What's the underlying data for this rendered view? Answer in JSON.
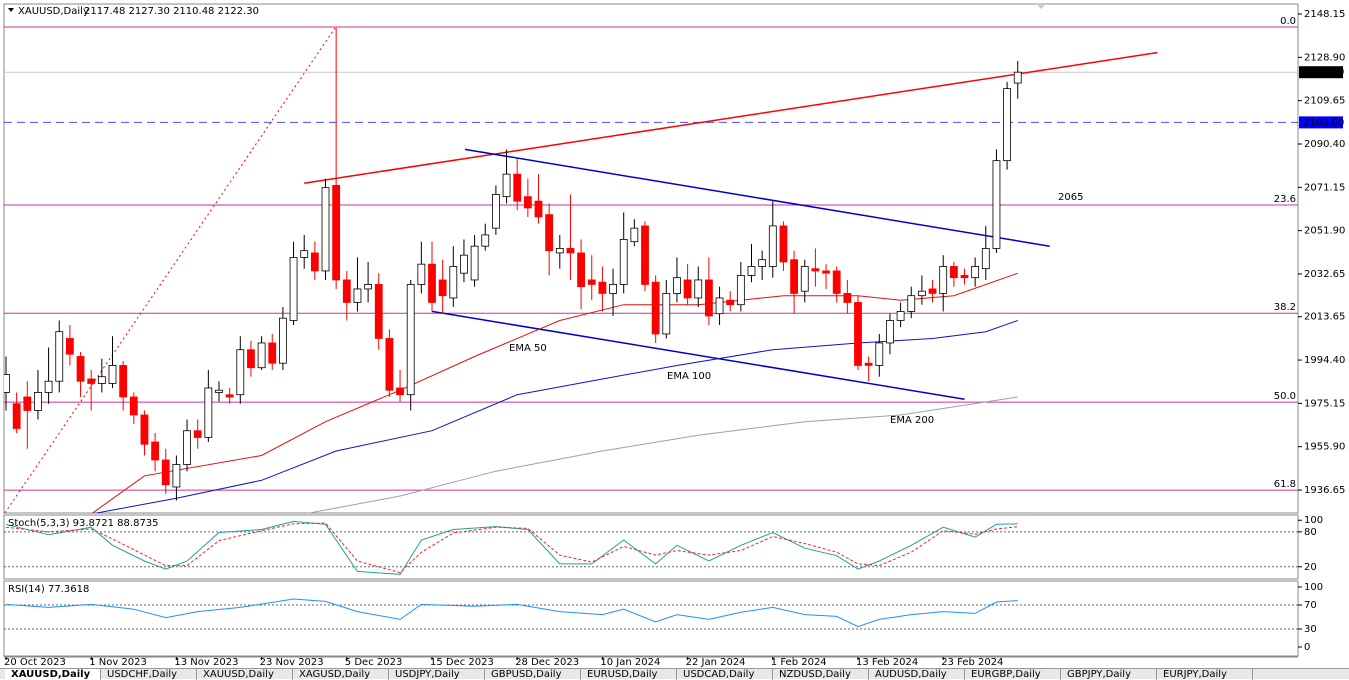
{
  "chart_data": [
    {
      "type": "candlestick",
      "title": "XAUUSD,Daily",
      "subtitle": "2117.48 2127.30 2110.48 2122.30",
      "categories": [
        "20 Oct 2023",
        null,
        null,
        null,
        null,
        null,
        null,
        null,
        "1 Nov 2023",
        null,
        null,
        null,
        null,
        null,
        null,
        null,
        "13 Nov 2023",
        null,
        null,
        null,
        null,
        null,
        null,
        null,
        "23 Nov 2023",
        null,
        null,
        null,
        null,
        null,
        null,
        null,
        "5 Dec 2023",
        null,
        null,
        null,
        null,
        null,
        null,
        null,
        "15 Dec 2023",
        null,
        null,
        null,
        null,
        null,
        null,
        null,
        "28 Dec 2023",
        null,
        null,
        null,
        null,
        null,
        null,
        null,
        "10 Jan 2024",
        null,
        null,
        null,
        null,
        null,
        null,
        null,
        "22 Jan 2024",
        null,
        null,
        null,
        null,
        null,
        null,
        null,
        "1 Feb 2024",
        null,
        null,
        null,
        null,
        null,
        null,
        null,
        "13 Feb 2024",
        null,
        null,
        null,
        null,
        null,
        null,
        null,
        "23 Feb 2024",
        null,
        null,
        null,
        null,
        null,
        null,
        null
      ],
      "open": [
        1980,
        1975,
        1978,
        1972,
        1980,
        1985,
        2004,
        1996,
        1986,
        1984,
        1984,
        1992,
        1978,
        1970,
        1958,
        1950,
        1938,
        1948,
        1963,
        1960,
        1980,
        1979,
        1979,
        1999,
        1991,
        2002,
        1993,
        2012,
        2040,
        2042,
        2034,
        2072,
        2030,
        2020,
        2026,
        2028,
        2004,
        1982,
        1979,
        2028,
        2037,
        2030,
        2022,
        2033,
        2030,
        2045,
        2053,
        2067,
        2077,
        2067,
        2065,
        2059,
        2042,
        2044,
        2042,
        2030,
        2029,
        2024,
        2028,
        2047,
        2054,
        2029,
        2006,
        2024,
        2030,
        2022,
        2030,
        2015,
        2021,
        2019,
        2032,
        2036,
        2036,
        2054,
        2039,
        2025,
        2035,
        2034,
        2034,
        2024,
        2020,
        1993,
        1992,
        2002,
        2012,
        2016,
        2023,
        2026,
        2024,
        2036,
        2032,
        2031,
        2035,
        2044,
        2083,
        2117.48
      ],
      "high": [
        1996,
        1980,
        1985,
        1990,
        2000,
        2012,
        2010,
        1998,
        1990,
        1995,
        2005,
        1994,
        1980,
        1972,
        1962,
        1955,
        1952,
        1968,
        1968,
        1990,
        1985,
        1982,
        2005,
        2003,
        2005,
        2006,
        2018,
        2047,
        2050,
        2047,
        2075,
        2142,
        2034,
        2040,
        2038,
        2033,
        2008,
        1990,
        2030,
        2047,
        2047,
        2039,
        2045,
        2048,
        2050,
        2055,
        2072,
        2088,
        2084,
        2075,
        2077,
        2064,
        2050,
        2068,
        2048,
        2041,
        2036,
        2035,
        2060,
        2057,
        2056,
        2032,
        2030,
        2040,
        2037,
        2036,
        2040,
        2027,
        2025,
        2038,
        2046,
        2043,
        2065,
        2056,
        2043,
        2039,
        2044,
        2037,
        2036,
        2030,
        2023,
        1996,
        2006,
        2015,
        2020,
        2027,
        2032,
        2030,
        2041,
        2038,
        2035,
        2040,
        2054,
        2088,
        2118,
        2127.3
      ],
      "low": [
        1972,
        1962,
        1955,
        1968,
        1975,
        1980,
        1992,
        1978,
        1972,
        1980,
        1982,
        1972,
        1966,
        1952,
        1945,
        1935,
        1932,
        1945,
        1955,
        1958,
        1976,
        1975,
        1975,
        1987,
        1990,
        1990,
        1990,
        2010,
        2035,
        2030,
        2030,
        2026,
        2012,
        2016,
        2020,
        1999,
        1978,
        1976,
        1972,
        2024,
        2016,
        2015,
        2018,
        2029,
        2027,
        2043,
        2050,
        2064,
        2061,
        2058,
        2055,
        2032,
        2035,
        2030,
        2017,
        2021,
        2016,
        2014,
        2024,
        2045,
        2025,
        2002,
        2004,
        2020,
        2019,
        2018,
        2010,
        2010,
        2016,
        2016,
        2029,
        2030,
        2031,
        2034,
        2015,
        2020,
        2027,
        2026,
        2020,
        2015,
        1990,
        1985,
        1987,
        1997,
        2009,
        2013,
        2019,
        2020,
        2016,
        2027,
        2028,
        2027,
        2030,
        2042,
        2079,
        2110.48
      ],
      "close": [
        1988,
        1964,
        1972,
        1980,
        1985,
        2007,
        1997,
        1985,
        1984,
        1987,
        1992,
        1978,
        1970,
        1957,
        1950,
        1939,
        1948,
        1963,
        1960,
        1982,
        1981,
        1978,
        1999,
        1991,
        2002,
        1993,
        2013,
        2040,
        2043,
        2034,
        2071,
        2030,
        2020,
        2026,
        2028,
        2004,
        1981,
        1979,
        2028,
        2037,
        2020,
        2023,
        2036,
        2041,
        2045,
        2050,
        2068,
        2077,
        2065,
        2062,
        2058,
        2043,
        2044,
        2042,
        2027,
        2028,
        2024,
        2028,
        2048,
        2053,
        2028,
        2006,
        2024,
        2031,
        2022,
        2030,
        2014,
        2022,
        2019,
        2032,
        2036,
        2039,
        2054,
        2038,
        2024,
        2036,
        2034,
        2033,
        2024,
        2020,
        1992,
        1992,
        2002,
        2012,
        2016,
        2023,
        2025,
        2024,
        2036,
        2031,
        2031,
        2036,
        2044,
        2083,
        2115,
        2122.3
      ],
      "up_color": "#ffffff",
      "down_color": "#ff0000",
      "wick_color": "#000000",
      "ylim": [
        1926.45,
        2152.6
      ],
      "yticks": [
        2148.15,
        {
          "value": 2128.9,
          "label": "2128.90"
        },
        2109.65,
        {
          "value": 2090.4,
          "label": "2090.40"
        },
        2071.15,
        {
          "value": 2051.9,
          "label": "2051.90"
        },
        2032.65,
        2013.65,
        {
          "value": 1994.4,
          "label": "1994.40"
        },
        1975.15,
        {
          "value": 1955.9,
          "label": "1955.90"
        },
        1936.65
      ],
      "series": [
        {
          "name": "EMA 50",
          "color": "#e01010",
          "x": [
            8,
            13,
            24,
            30,
            37,
            44,
            52,
            58,
            65,
            73,
            80,
            84,
            89,
            95
          ],
          "values": [
            1926,
            1943,
            1952,
            1967,
            1981,
            1996,
            2012,
            2019,
            2019,
            2023,
            2023,
            2021,
            2023,
            2033
          ]
        },
        {
          "name": "EMA 100",
          "color": "#1010d0",
          "x": [
            8,
            16,
            24,
            31,
            40,
            48,
            56,
            63,
            72,
            80,
            87,
            92,
            95
          ],
          "values": [
            1926,
            1933,
            1941,
            1954,
            1963,
            1979,
            1986,
            1992,
            1999,
            2002,
            2004,
            2007,
            2012
          ]
        },
        {
          "name": "EMA 200",
          "color": "#a0a0a0",
          "x": [
            28,
            37,
            46,
            56,
            65,
            75,
            84,
            95
          ],
          "values": [
            1926,
            1934,
            1945,
            1954,
            1961,
            1967,
            1970,
            1978
          ]
        }
      ],
      "trendlines": [
        {
          "color": "#ff0000",
          "x": [
            28,
            108.1
          ],
          "values": [
            2073,
            2131
          ]
        },
        {
          "color": "#0000cc",
          "x": [
            43.1,
            98
          ],
          "values": [
            2088,
            2045
          ]
        },
        {
          "color": "#0000cc",
          "x": [
            40,
            90
          ],
          "values": [
            2016,
            1977
          ]
        },
        {
          "color": "#ff0000",
          "dashed": true,
          "x": [
            -0.1,
            30.9
          ],
          "values": [
            1926.5,
            2142
          ]
        }
      ],
      "fibo": {
        "color": "#cc3399",
        "levels": [
          {
            "ratio": 0,
            "label": "0.0",
            "price": 2142.4
          },
          {
            "ratio": 23.6,
            "price": 2063.3
          },
          {
            "ratio": 38.2,
            "price": 2015.2
          },
          {
            "ratio": 50,
            "label": "50.0",
            "price": 1975.7
          },
          {
            "ratio": 61.8,
            "price": 1936.6
          }
        ]
      },
      "hlines": [
        {
          "value": 2100,
          "label": "2100.00",
          "color": "#0000ff"
        }
      ],
      "last_price": {
        "value": 2122.3,
        "label": "2122.30"
      },
      "annotations": [
        {
          "text": "2065",
          "color": "#ff0000"
        }
      ]
    },
    {
      "type": "line",
      "title": "Stoch(5,3,3) 93.8721 88.8735",
      "ylim": [
        -1,
        109
      ],
      "yticks": [
        20,
        80,
        100
      ],
      "levels": [
        80,
        20
      ],
      "series": [
        {
          "color": "#20a0a0",
          "x": [
            0,
            4,
            8,
            10,
            13,
            15,
            17,
            20,
            24,
            27,
            30,
            33,
            37,
            39,
            42,
            46,
            49,
            52,
            55,
            58,
            61,
            63,
            66,
            69,
            72,
            75,
            78,
            80,
            82,
            85,
            88,
            91,
            93,
            95
          ],
          "values": [
            93,
            75,
            88,
            57,
            30,
            16,
            30,
            79,
            84,
            98,
            93,
            12,
            7,
            66,
            84,
            89,
            84,
            25,
            25,
            66,
            25,
            57,
            30,
            57,
            79,
            52,
            39,
            16,
            30,
            57,
            88,
            71,
            93,
            93.87
          ]
        },
        {
          "color": "#ff2020",
          "dashed": true,
          "x": [
            0,
            4,
            8,
            10,
            13,
            15,
            17,
            20,
            24,
            27,
            30,
            33,
            37,
            39,
            42,
            46,
            49,
            52,
            55,
            58,
            61,
            63,
            66,
            69,
            72,
            75,
            78,
            80,
            82,
            85,
            88,
            91,
            93,
            95
          ],
          "values": [
            88,
            80,
            85,
            68,
            40,
            22,
            22,
            65,
            82,
            94,
            95,
            30,
            10,
            45,
            78,
            88,
            86,
            40,
            28,
            55,
            40,
            48,
            40,
            48,
            72,
            60,
            45,
            25,
            22,
            45,
            82,
            76,
            85,
            88.87
          ]
        }
      ]
    },
    {
      "type": "line",
      "title": "RSI(14) 77.3618",
      "ylim": [
        -15,
        110
      ],
      "yticks": [
        0,
        30,
        70,
        100
      ],
      "levels": [
        70,
        30
      ],
      "series": [
        {
          "color": "#1e90ff",
          "x": [
            0,
            4,
            8,
            12,
            15,
            18,
            22,
            27,
            30,
            33,
            37,
            39,
            44,
            48,
            52,
            56,
            58,
            61,
            63,
            66,
            69,
            72,
            75,
            78,
            80,
            82,
            85,
            88,
            91,
            93,
            95
          ],
          "values": [
            71,
            66,
            71,
            63,
            49,
            59,
            66,
            80,
            76,
            59,
            46,
            71,
            68,
            71,
            59,
            54,
            63,
            42,
            54,
            46,
            58,
            66,
            54,
            51,
            34,
            46,
            54,
            59,
            56,
            75,
            77.36
          ]
        }
      ]
    }
  ],
  "tabs": [
    "XAUUSD,Daily",
    "USDCHF,Daily",
    "XAUUSD,Daily",
    "XAGUSD,Daily",
    "USDJPY,Daily",
    "GBPUSD,Daily",
    "EURUSD,Daily",
    "USDCAD,Daily",
    "NZDUSD,Daily",
    "AUDUSD,Daily",
    "EURGBP,Daily",
    "GBPJPY,Daily",
    "EURJPY,Daily"
  ]
}
